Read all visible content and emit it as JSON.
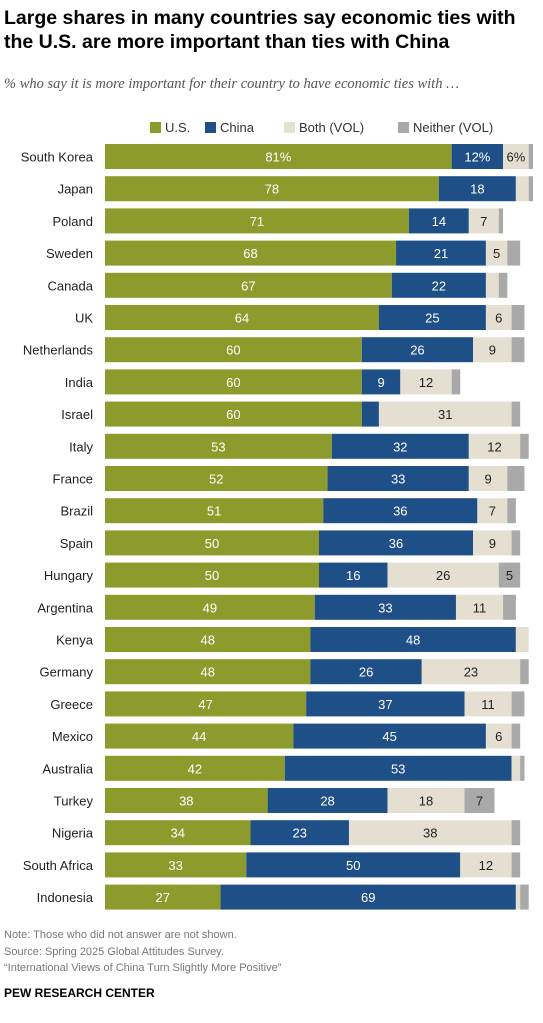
{
  "title": "Large shares in many countries say economic ties with the U.S. are more important than ties with China",
  "subtitle": "% who say it is more important for their country to have economic ties with …",
  "notes": {
    "note": "Note: Those who did not answer are not shown.",
    "source": "Source: Spring 2025 Global Attitudes Survey.",
    "report": "“International Views of China Turn Slightly More Positive”"
  },
  "org": "PEW RESEARCH CENTER",
  "chart_data": {
    "type": "bar",
    "orientation": "horizontal",
    "stacked": true,
    "legend_position": "top",
    "xlim": [
      0,
      100
    ],
    "categories": [
      "South Korea",
      "Japan",
      "Poland",
      "Sweden",
      "Canada",
      "UK",
      "Netherlands",
      "India",
      "Israel",
      "Italy",
      "France",
      "Brazil",
      "Spain",
      "Hungary",
      "Argentina",
      "Kenya",
      "Germany",
      "Greece",
      "Mexico",
      "Australia",
      "Turkey",
      "Nigeria",
      "South Africa",
      "Indonesia"
    ],
    "series": [
      {
        "name": "U.S.",
        "color": "#8c9b2b",
        "label_color": "#ffffff",
        "values": [
          81,
          78,
          71,
          68,
          67,
          64,
          60,
          60,
          60,
          53,
          52,
          51,
          50,
          50,
          49,
          48,
          48,
          47,
          44,
          42,
          38,
          34,
          33,
          27
        ],
        "labels": [
          "81%",
          "78",
          "71",
          "68",
          "67",
          "64",
          "60",
          "60",
          "60",
          "53",
          "52",
          "51",
          "50",
          "50",
          "49",
          "48",
          "48",
          "47",
          "44",
          "42",
          "38",
          "34",
          "33",
          "27"
        ]
      },
      {
        "name": "China",
        "color": "#1e4f86",
        "label_color": "#ffffff",
        "values": [
          12,
          18,
          14,
          21,
          22,
          25,
          26,
          9,
          4,
          32,
          33,
          36,
          36,
          16,
          33,
          48,
          26,
          37,
          45,
          53,
          28,
          23,
          50,
          69
        ],
        "labels": [
          "12%",
          "18",
          "14",
          "21",
          "22",
          "25",
          "26",
          "9",
          "",
          "32",
          "33",
          "36",
          "36",
          "16",
          "33",
          "48",
          "26",
          "37",
          "45",
          "53",
          "28",
          "23",
          "50",
          "69"
        ]
      },
      {
        "name": "Both (VOL)",
        "color": "#e4dfd1",
        "label_color": "#222222",
        "values": [
          6,
          3,
          7,
          5,
          3,
          6,
          9,
          12,
          31,
          12,
          9,
          7,
          9,
          26,
          11,
          3,
          23,
          11,
          6,
          2,
          18,
          38,
          12,
          1
        ],
        "labels": [
          "6%",
          "",
          "7",
          "5",
          "",
          "6",
          "9",
          "12",
          "31",
          "12",
          "9",
          "7",
          "9",
          "26",
          "11",
          "",
          "23",
          "11",
          "6",
          "",
          "18",
          "38",
          "12",
          ""
        ]
      },
      {
        "name": "Neither (VOL)",
        "color": "#a9a9a9",
        "label_color": "#222222",
        "values": [
          1,
          1,
          1,
          3,
          2,
          3,
          3,
          2,
          2,
          2,
          4,
          2,
          2,
          5,
          3,
          0,
          2,
          3,
          2,
          1,
          7,
          2,
          2,
          2
        ],
        "labels": [
          "",
          "",
          "",
          "",
          "",
          "",
          "",
          "",
          "",
          "",
          "",
          "",
          "",
          "5",
          "",
          "",
          "",
          "",
          "",
          "",
          "7",
          "",
          "",
          ""
        ]
      }
    ]
  }
}
